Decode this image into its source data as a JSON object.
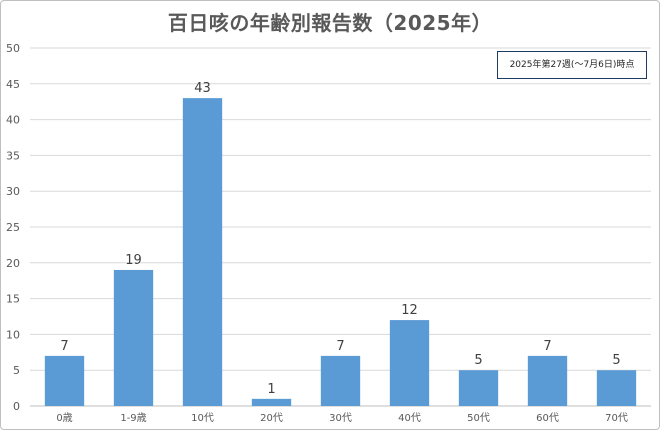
{
  "chart_data": {
    "type": "bar",
    "title": "百日咳の年齢別報告数（2025年）",
    "annotation": "2025年第27週(～7月6日)時点",
    "categories": [
      "0歳",
      "1-9歳",
      "10代",
      "20代",
      "30代",
      "40代",
      "50代",
      "60代",
      "70代"
    ],
    "values": [
      7,
      19,
      43,
      1,
      7,
      12,
      5,
      7,
      5
    ],
    "ylim": [
      0,
      50
    ],
    "yticks": [
      0,
      5,
      10,
      15,
      20,
      25,
      30,
      35,
      40,
      45,
      50
    ],
    "xlabel": "",
    "ylabel": "",
    "grid": true,
    "legend": "none",
    "bar_color": "#5b9bd5"
  }
}
